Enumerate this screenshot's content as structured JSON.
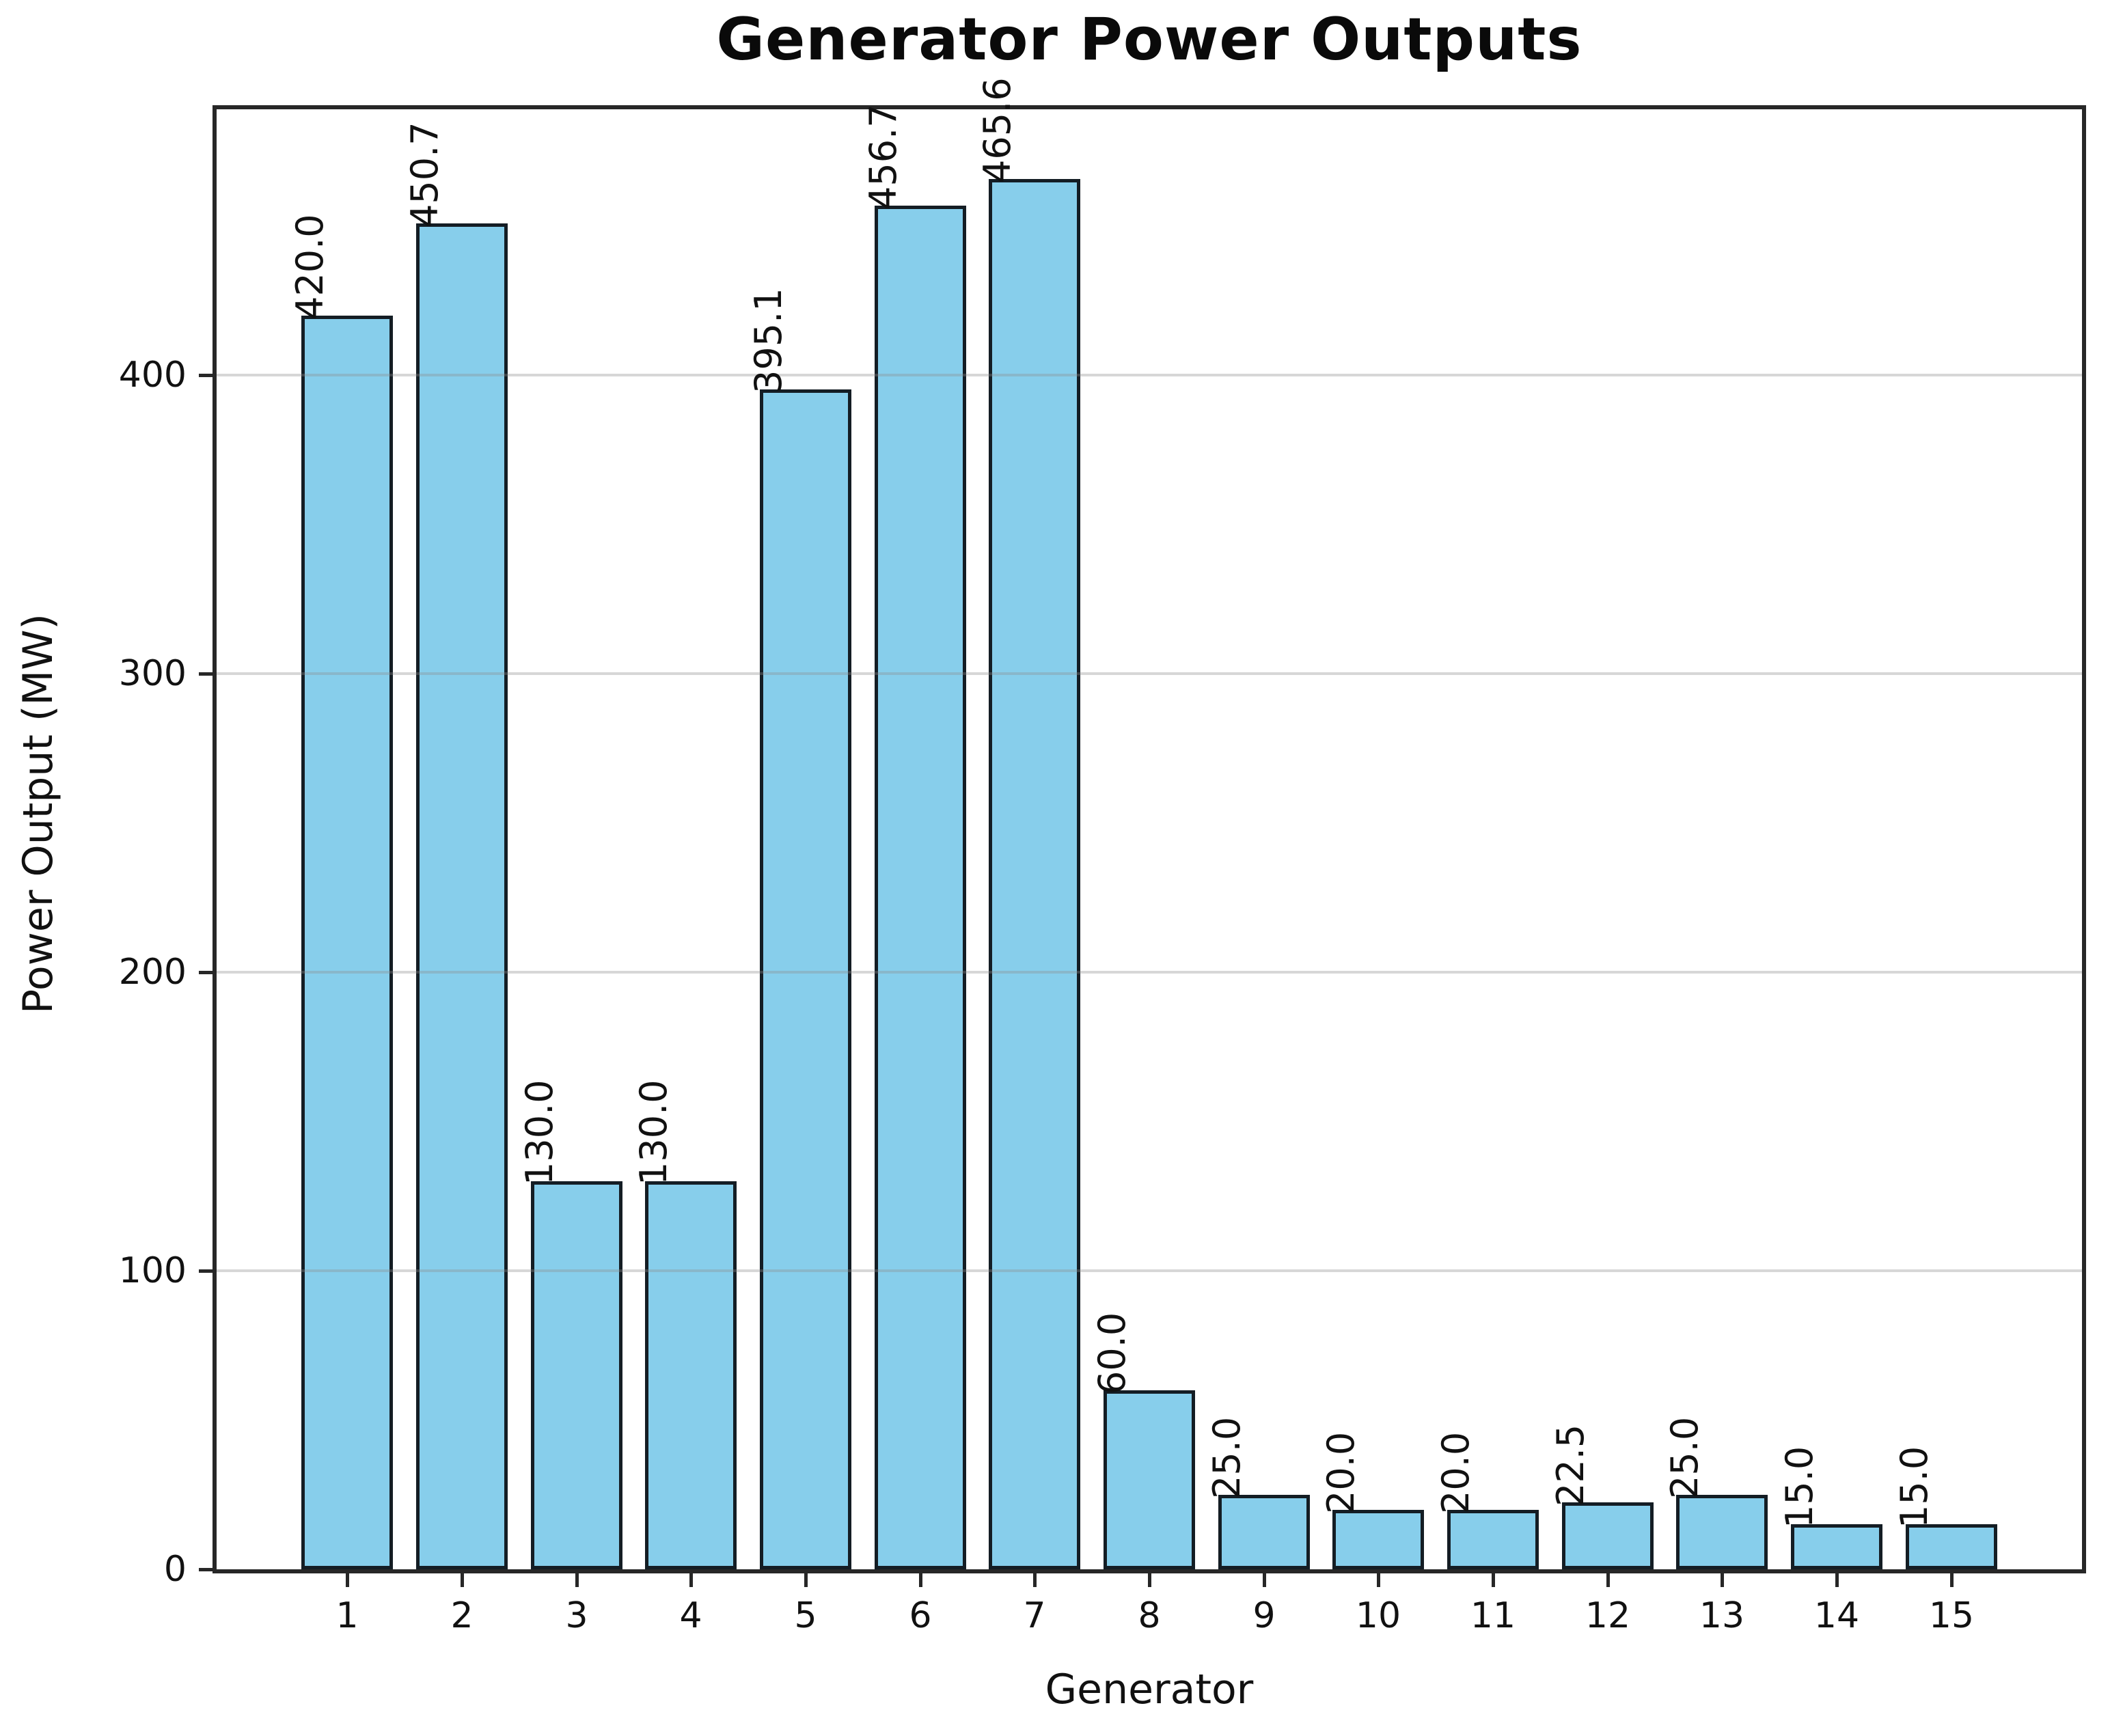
{
  "chart_data": {
    "type": "bar",
    "title": "Generator Power Outputs",
    "xlabel": "Generator",
    "ylabel": "Power Output (MW)",
    "categories": [
      "1",
      "2",
      "3",
      "4",
      "5",
      "6",
      "7",
      "8",
      "9",
      "10",
      "11",
      "12",
      "13",
      "14",
      "15"
    ],
    "values": [
      420.0,
      450.7,
      130.0,
      130.0,
      395.1,
      456.7,
      465.6,
      60.0,
      25.0,
      20.0,
      20.0,
      22.5,
      25.0,
      15.0,
      15.0
    ],
    "bar_value_labels": [
      "420.0",
      "450.7",
      "130.0",
      "130.0",
      "395.1",
      "456.7",
      "465.6",
      "60.0",
      "25.0",
      "20.0",
      "20.0",
      "22.5",
      "25.0",
      "15.0",
      "15.0"
    ],
    "yticks": [
      0,
      100,
      200,
      300,
      400
    ],
    "ylim": [
      0,
      489
    ],
    "grid": "horizontal",
    "legend_position": "none",
    "bar_color": "#87CEEB",
    "bar_edge_color": "#141d24",
    "value_label_rotation_deg": 90
  }
}
